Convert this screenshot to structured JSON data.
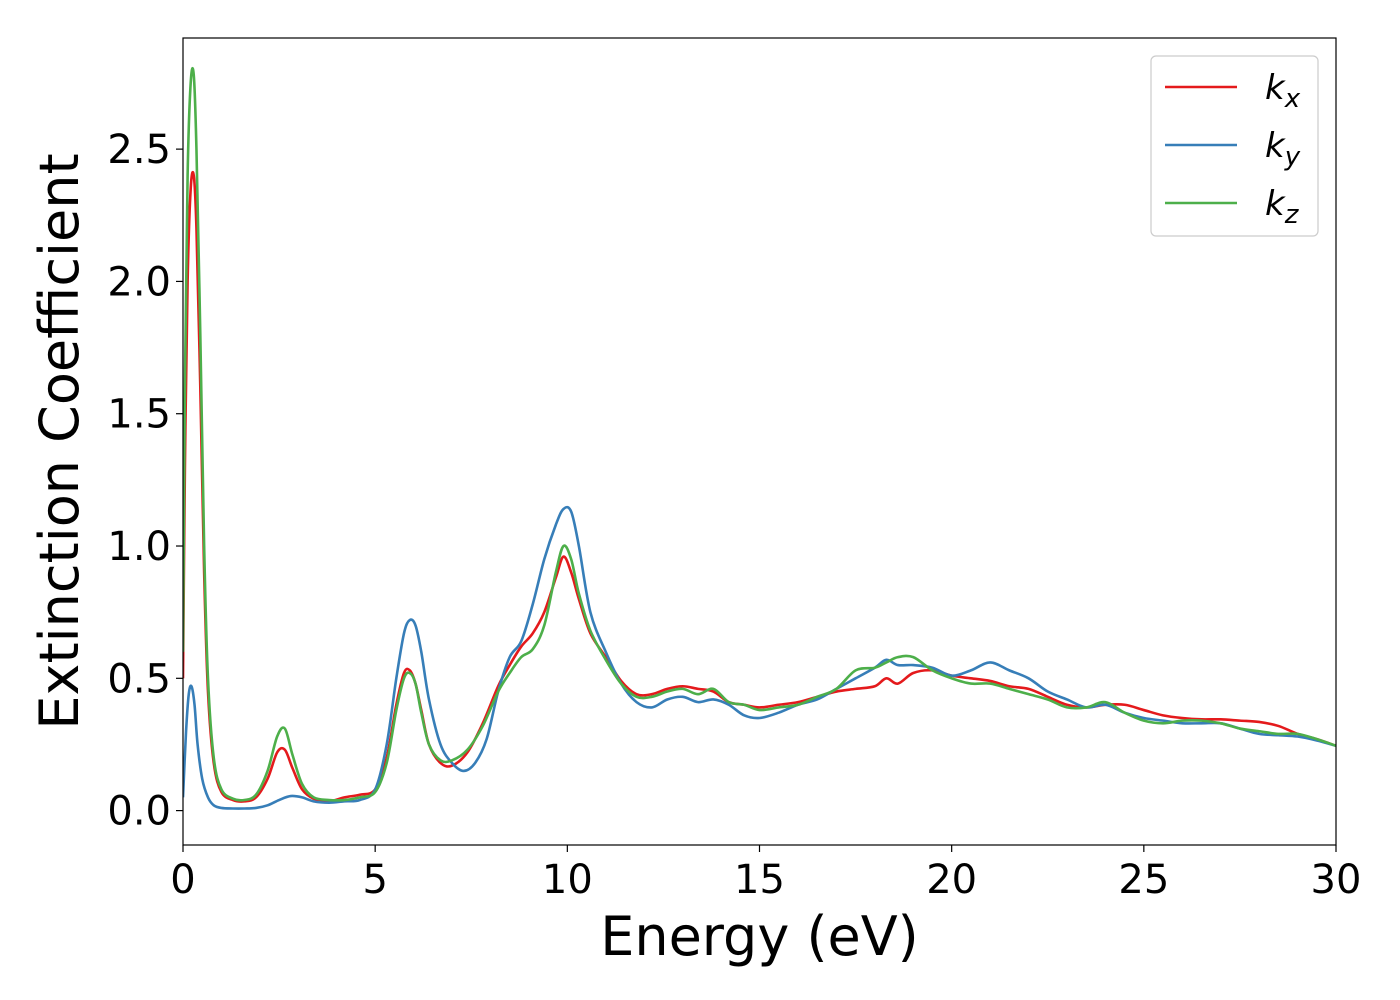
{
  "chart_data": {
    "type": "line",
    "xlabel": "Energy (eV)",
    "ylabel": "Extinction Coefficient",
    "xlim": [
      0,
      30
    ],
    "ylim": [
      -0.13,
      2.92
    ],
    "xticks": [
      0,
      5,
      10,
      15,
      20,
      25,
      30
    ],
    "xtick_labels": [
      "0",
      "5",
      "10",
      "15",
      "20",
      "25",
      "30"
    ],
    "yticks": [
      0.0,
      0.5,
      1.0,
      1.5,
      2.0,
      2.5
    ],
    "ytick_labels": [
      "0.0",
      "0.5",
      "1.0",
      "1.5",
      "2.0",
      "2.5"
    ],
    "grid": false,
    "legend_position": "top-right",
    "series": [
      {
        "name": "k_x",
        "legend_main": "k",
        "legend_sub": "x",
        "color": "#e41a1c",
        "x": [
          0,
          0.05,
          0.12,
          0.2,
          0.28,
          0.35,
          0.45,
          0.55,
          0.65,
          0.8,
          1.0,
          1.3,
          1.6,
          1.9,
          2.2,
          2.45,
          2.65,
          2.85,
          3.1,
          3.4,
          3.8,
          4.2,
          4.6,
          5.0,
          5.3,
          5.55,
          5.75,
          5.9,
          6.05,
          6.2,
          6.4,
          6.7,
          7.0,
          7.4,
          7.8,
          8.2,
          8.5,
          8.8,
          9.1,
          9.4,
          9.7,
          9.9,
          10.1,
          10.3,
          10.6,
          11.0,
          11.4,
          11.8,
          12.2,
          12.6,
          13.0,
          13.4,
          13.8,
          14.2,
          14.6,
          15.0,
          15.5,
          16.0,
          16.5,
          17.0,
          17.5,
          18.0,
          18.3,
          18.6,
          19.0,
          19.5,
          20.0,
          20.5,
          21.0,
          21.5,
          22.0,
          22.5,
          23.0,
          23.5,
          24.0,
          24.5,
          25.0,
          25.5,
          26.0,
          26.5,
          27.0,
          27.5,
          28.0,
          28.5,
          29.0,
          29.5,
          30.0
        ],
        "y": [
          0.5,
          1.3,
          2.0,
          2.35,
          2.4,
          2.2,
          1.6,
          0.9,
          0.45,
          0.18,
          0.07,
          0.04,
          0.035,
          0.05,
          0.12,
          0.22,
          0.23,
          0.16,
          0.08,
          0.045,
          0.035,
          0.05,
          0.06,
          0.08,
          0.2,
          0.4,
          0.52,
          0.53,
          0.48,
          0.38,
          0.25,
          0.18,
          0.17,
          0.22,
          0.33,
          0.47,
          0.55,
          0.62,
          0.67,
          0.75,
          0.88,
          0.96,
          0.9,
          0.8,
          0.67,
          0.58,
          0.49,
          0.44,
          0.44,
          0.46,
          0.47,
          0.46,
          0.45,
          0.41,
          0.4,
          0.39,
          0.4,
          0.41,
          0.43,
          0.45,
          0.46,
          0.47,
          0.5,
          0.48,
          0.52,
          0.53,
          0.51,
          0.5,
          0.49,
          0.47,
          0.46,
          0.43,
          0.4,
          0.39,
          0.4,
          0.4,
          0.38,
          0.36,
          0.35,
          0.345,
          0.345,
          0.34,
          0.335,
          0.32,
          0.29,
          0.27,
          0.245
        ]
      },
      {
        "name": "k_y",
        "legend_main": "k",
        "legend_sub": "y",
        "color": "#377eb8",
        "x": [
          0,
          0.08,
          0.15,
          0.22,
          0.3,
          0.38,
          0.5,
          0.65,
          0.8,
          1.0,
          1.3,
          1.6,
          1.9,
          2.2,
          2.5,
          2.8,
          3.1,
          3.4,
          3.8,
          4.2,
          4.6,
          5.0,
          5.3,
          5.55,
          5.75,
          5.9,
          6.05,
          6.2,
          6.4,
          6.7,
          7.0,
          7.3,
          7.6,
          7.9,
          8.2,
          8.5,
          8.8,
          9.1,
          9.4,
          9.7,
          9.9,
          10.1,
          10.3,
          10.6,
          11.0,
          11.4,
          11.8,
          12.2,
          12.6,
          13.0,
          13.4,
          13.8,
          14.2,
          14.6,
          15.0,
          15.5,
          16.0,
          16.5,
          17.0,
          17.5,
          18.0,
          18.3,
          18.6,
          19.0,
          19.5,
          20.0,
          20.5,
          21.0,
          21.5,
          22.0,
          22.5,
          23.0,
          23.5,
          24.0,
          24.5,
          25.0,
          25.5,
          26.0,
          26.5,
          27.0,
          27.5,
          28.0,
          28.5,
          29.0,
          29.5,
          30.0
        ],
        "y": [
          0.05,
          0.3,
          0.44,
          0.47,
          0.4,
          0.25,
          0.12,
          0.05,
          0.02,
          0.01,
          0.008,
          0.008,
          0.01,
          0.02,
          0.04,
          0.055,
          0.05,
          0.035,
          0.03,
          0.035,
          0.04,
          0.08,
          0.25,
          0.5,
          0.67,
          0.72,
          0.7,
          0.6,
          0.42,
          0.25,
          0.18,
          0.15,
          0.18,
          0.27,
          0.45,
          0.58,
          0.64,
          0.78,
          0.95,
          1.08,
          1.14,
          1.13,
          1.0,
          0.75,
          0.6,
          0.48,
          0.41,
          0.39,
          0.42,
          0.43,
          0.41,
          0.42,
          0.4,
          0.36,
          0.35,
          0.37,
          0.4,
          0.42,
          0.46,
          0.5,
          0.54,
          0.57,
          0.55,
          0.55,
          0.54,
          0.51,
          0.53,
          0.56,
          0.53,
          0.5,
          0.45,
          0.42,
          0.39,
          0.4,
          0.37,
          0.35,
          0.34,
          0.33,
          0.33,
          0.33,
          0.31,
          0.29,
          0.285,
          0.28,
          0.265,
          0.245
        ]
      },
      {
        "name": "k_z",
        "legend_main": "k",
        "legend_sub": "z",
        "color": "#4daf4a",
        "x": [
          0,
          0.05,
          0.12,
          0.2,
          0.28,
          0.35,
          0.45,
          0.55,
          0.65,
          0.8,
          1.0,
          1.3,
          1.6,
          1.9,
          2.2,
          2.45,
          2.65,
          2.85,
          3.1,
          3.4,
          3.8,
          4.2,
          4.6,
          5.0,
          5.3,
          5.55,
          5.75,
          5.9,
          6.05,
          6.2,
          6.4,
          6.7,
          7.0,
          7.4,
          7.8,
          8.2,
          8.5,
          8.8,
          9.1,
          9.4,
          9.7,
          9.9,
          10.1,
          10.3,
          10.6,
          11.0,
          11.4,
          11.8,
          12.2,
          12.6,
          13.0,
          13.4,
          13.8,
          14.2,
          14.6,
          15.0,
          15.5,
          16.0,
          16.5,
          17.0,
          17.5,
          18.0,
          18.3,
          18.6,
          19.0,
          19.5,
          20.0,
          20.5,
          21.0,
          21.5,
          22.0,
          22.5,
          23.0,
          23.5,
          24.0,
          24.5,
          25.0,
          25.5,
          26.0,
          26.5,
          27.0,
          27.5,
          28.0,
          28.5,
          29.0,
          29.5,
          30.0
        ],
        "y": [
          0.6,
          1.6,
          2.4,
          2.75,
          2.78,
          2.5,
          1.8,
          1.0,
          0.5,
          0.2,
          0.08,
          0.045,
          0.04,
          0.06,
          0.15,
          0.28,
          0.31,
          0.21,
          0.1,
          0.05,
          0.04,
          0.04,
          0.05,
          0.07,
          0.18,
          0.38,
          0.5,
          0.52,
          0.48,
          0.37,
          0.25,
          0.19,
          0.19,
          0.23,
          0.32,
          0.45,
          0.52,
          0.58,
          0.61,
          0.7,
          0.9,
          1.0,
          0.95,
          0.82,
          0.68,
          0.57,
          0.48,
          0.43,
          0.43,
          0.45,
          0.46,
          0.44,
          0.46,
          0.41,
          0.4,
          0.38,
          0.39,
          0.4,
          0.43,
          0.46,
          0.53,
          0.54,
          0.56,
          0.58,
          0.58,
          0.53,
          0.5,
          0.48,
          0.48,
          0.46,
          0.44,
          0.42,
          0.39,
          0.39,
          0.41,
          0.37,
          0.34,
          0.33,
          0.34,
          0.34,
          0.33,
          0.31,
          0.3,
          0.29,
          0.29,
          0.27,
          0.245
        ]
      }
    ]
  }
}
